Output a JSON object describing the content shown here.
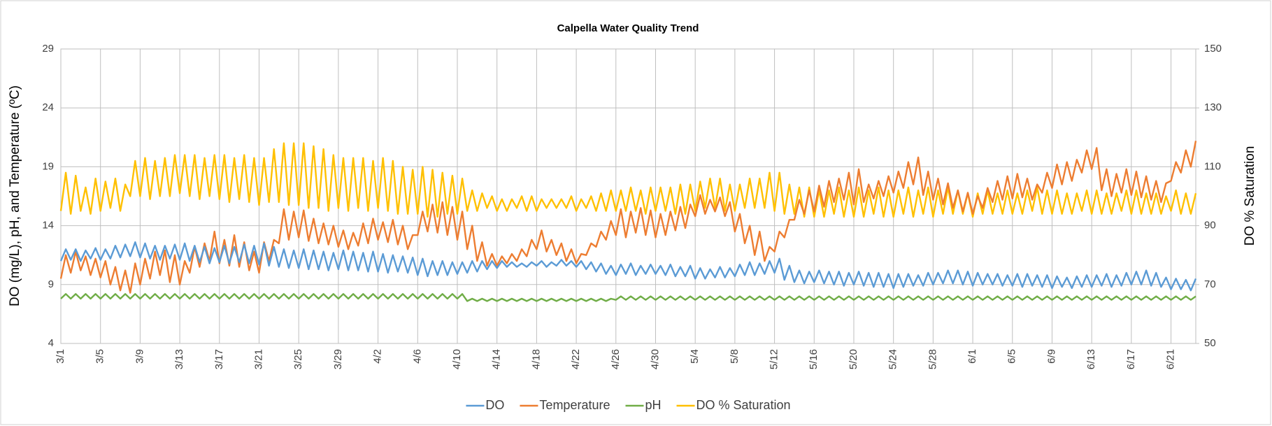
{
  "chart_data": {
    "type": "line",
    "title": "Calpella Water Quality Trend",
    "y_label": "DO (mg/L), pH, and Temperature (ºC)",
    "y2_label": "DO % Saturation",
    "xlim": [
      0,
      114.5
    ],
    "xticks": [
      {
        "value": 0,
        "label": "3/1"
      },
      {
        "value": 4,
        "label": "3/5"
      },
      {
        "value": 8,
        "label": "3/9"
      },
      {
        "value": 12,
        "label": "3/13"
      },
      {
        "value": 16,
        "label": "3/17"
      },
      {
        "value": 20,
        "label": "3/21"
      },
      {
        "value": 24,
        "label": "3/25"
      },
      {
        "value": 28,
        "label": "3/29"
      },
      {
        "value": 32,
        "label": "4/2"
      },
      {
        "value": 36,
        "label": "4/6"
      },
      {
        "value": 40,
        "label": "4/10"
      },
      {
        "value": 44,
        "label": "4/14"
      },
      {
        "value": 48,
        "label": "4/18"
      },
      {
        "value": 52,
        "label": "4/22"
      },
      {
        "value": 56,
        "label": "4/26"
      },
      {
        "value": 60,
        "label": "4/30"
      },
      {
        "value": 64,
        "label": "5/4"
      },
      {
        "value": 68,
        "label": "5/8"
      },
      {
        "value": 72,
        "label": "5/12"
      },
      {
        "value": 76,
        "label": "5/16"
      },
      {
        "value": 80,
        "label": "5/20"
      },
      {
        "value": 84,
        "label": "5/24"
      },
      {
        "value": 88,
        "label": "5/28"
      },
      {
        "value": 92,
        "label": "6/1"
      },
      {
        "value": 96,
        "label": "6/5"
      },
      {
        "value": 100,
        "label": "6/9"
      },
      {
        "value": 104,
        "label": "6/13"
      },
      {
        "value": 108,
        "label": "6/17"
      },
      {
        "value": 112,
        "label": "6/21"
      }
    ],
    "ylim": [
      4,
      29
    ],
    "yticks": [
      4,
      9,
      14,
      19,
      24,
      29
    ],
    "y2lim": [
      50,
      150
    ],
    "y2ticks": [
      50,
      70,
      90,
      110,
      130,
      150
    ],
    "grid": true,
    "legend": "bottom",
    "x": [
      0,
      0.5,
      1,
      1.5,
      2,
      2.5,
      3,
      3.5,
      4,
      4.5,
      5,
      5.5,
      6,
      6.5,
      7,
      7.5,
      8,
      8.5,
      9,
      9.5,
      10,
      10.5,
      11,
      11.5,
      12,
      12.5,
      13,
      13.5,
      14,
      14.5,
      15,
      15.5,
      16,
      16.5,
      17,
      17.5,
      18,
      18.5,
      19,
      19.5,
      20,
      20.5,
      21,
      21.5,
      22,
      22.5,
      23,
      23.5,
      24,
      24.5,
      25,
      25.5,
      26,
      26.5,
      27,
      27.5,
      28,
      28.5,
      29,
      29.5,
      30,
      30.5,
      31,
      31.5,
      32,
      32.5,
      33,
      33.5,
      34,
      34.5,
      35,
      35.5,
      36,
      36.5,
      37,
      37.5,
      38,
      38.5,
      39,
      39.5,
      40,
      40.5,
      41,
      41.5,
      42,
      42.5,
      43,
      43.5,
      44,
      44.5,
      45,
      45.5,
      46,
      46.5,
      47,
      47.5,
      48,
      48.5,
      49,
      49.5,
      50,
      50.5,
      51,
      51.5,
      52,
      52.5,
      53,
      53.5,
      54,
      54.5,
      55,
      55.5,
      56,
      56.5,
      57,
      57.5,
      58,
      58.5,
      59,
      59.5,
      60,
      60.5,
      61,
      61.5,
      62,
      62.5,
      63,
      63.5,
      64,
      64.5,
      65,
      65.5,
      66,
      66.5,
      67,
      67.5,
      68,
      68.5,
      69,
      69.5,
      70,
      70.5,
      71,
      71.5,
      72,
      72.5,
      73,
      73.5,
      74,
      74.5,
      75,
      75.5,
      76,
      76.5,
      77,
      77.5,
      78,
      78.5,
      79,
      79.5,
      80,
      80.5,
      81,
      81.5,
      82,
      82.5,
      83,
      83.5,
      84,
      84.5,
      85,
      85.5,
      86,
      86.5,
      87,
      87.5,
      88,
      88.5,
      89,
      89.5,
      90,
      90.5,
      91,
      91.5,
      92,
      92.5,
      93,
      93.5,
      94,
      94.5,
      95,
      95.5,
      96,
      96.5,
      97,
      97.5,
      98,
      98.5,
      99,
      99.5,
      100,
      100.5,
      101,
      101.5,
      102,
      102.5,
      103,
      103.5,
      104,
      104.5,
      105,
      105.5,
      106,
      106.5,
      107,
      107.5,
      108,
      108.5,
      109,
      109.5,
      110,
      110.5,
      111,
      111.5,
      112,
      112.5,
      113,
      113.5,
      114,
      114.5
    ],
    "series": [
      {
        "name": "DO",
        "color": "#5b9bd5",
        "values": [
          11,
          12,
          11.1,
          12,
          11,
          11.9,
          11.2,
          12.1,
          11.1,
          12,
          11.2,
          12.3,
          11.3,
          12.4,
          11.4,
          12.6,
          11.3,
          12.5,
          11.2,
          12.3,
          11.1,
          12.3,
          11.2,
          12.4,
          11.1,
          12.5,
          11,
          12.3,
          10.9,
          12.2,
          10.8,
          12.1,
          10.9,
          12.3,
          10.8,
          12.2,
          10.9,
          12.4,
          10.8,
          12.3,
          10.7,
          12.5,
          10.6,
          12.2,
          10.5,
          12,
          10.4,
          11.9,
          10.4,
          12,
          10.3,
          11.9,
          10.3,
          11.8,
          10.2,
          11.7,
          10.3,
          11.9,
          10.2,
          11.8,
          10.2,
          11.7,
          10.1,
          11.8,
          10.1,
          11.6,
          10,
          11.5,
          10.1,
          11.4,
          10,
          11.3,
          9.8,
          11.2,
          9.7,
          11,
          9.8,
          11,
          9.8,
          10.9,
          9.9,
          10.9,
          10,
          11,
          10.1,
          11,
          10.3,
          11,
          10.4,
          11,
          10.5,
          10.9,
          10.5,
          10.8,
          10.5,
          10.9,
          10.6,
          11,
          10.5,
          10.9,
          10.6,
          11.1,
          10.6,
          11,
          10.5,
          11,
          10.3,
          10.9,
          10.1,
          10.8,
          9.9,
          10.6,
          9.8,
          10.7,
          9.9,
          10.8,
          9.8,
          10.6,
          9.9,
          10.7,
          9.9,
          10.6,
          9.8,
          10.7,
          9.7,
          10.5,
          9.7,
          10.6,
          9.5,
          10.4,
          9.5,
          10.3,
          9.6,
          10.5,
          9.6,
          10.4,
          9.7,
          10.7,
          9.8,
          10.9,
          9.8,
          10.8,
          9.9,
          11,
          10,
          11.2,
          9.4,
          10.6,
          9.2,
          10.2,
          9.1,
          10.1,
          9.2,
          10.2,
          9.1,
          10.1,
          9,
          10.1,
          8.9,
          10,
          9,
          10.1,
          8.9,
          10,
          8.8,
          10,
          8.8,
          9.9,
          8.7,
          9.9,
          8.8,
          9.9,
          8.9,
          9.8,
          8.9,
          10,
          9,
          10,
          9.1,
          10.2,
          9.1,
          10.2,
          9,
          10.1,
          8.9,
          10,
          9,
          9.9,
          9,
          9.9,
          8.9,
          9.8,
          8.9,
          9.9,
          8.8,
          9.9,
          8.9,
          9.8,
          8.8,
          9.8,
          8.7,
          9.7,
          8.8,
          9.6,
          8.7,
          9.7,
          8.8,
          9.8,
          8.8,
          9.8,
          8.9,
          9.9,
          8.8,
          9.8,
          8.9,
          10,
          9,
          10.1,
          9,
          10.2,
          8.9,
          10,
          8.8,
          9.6,
          8.6,
          9.5,
          8.6,
          9.4,
          8.5,
          9.5
        ]
      },
      {
        "name": "Temperature",
        "color": "#ed7d31",
        "values": [
          9.5,
          11.5,
          10,
          11.8,
          10.2,
          11.4,
          9.8,
          11.2,
          9.6,
          11,
          9,
          10.5,
          8.5,
          10.2,
          8.3,
          10.8,
          9,
          11.2,
          9.5,
          11.8,
          9.8,
          11.9,
          9.2,
          11.5,
          9,
          11,
          10,
          12.2,
          10.5,
          12.5,
          11,
          13.5,
          10.8,
          12.8,
          10.6,
          13.2,
          10.5,
          12.6,
          10.2,
          11.8,
          10,
          12.6,
          11,
          12.8,
          12.5,
          15.4,
          12.8,
          15.2,
          13,
          15.3,
          12.7,
          14.6,
          12.5,
          14.2,
          12.4,
          14,
          12.2,
          13.6,
          12,
          13.4,
          12.3,
          14.2,
          12.5,
          14.6,
          12.8,
          14.3,
          12.6,
          14.5,
          12.4,
          14,
          12,
          13.2,
          13.2,
          15.2,
          13.5,
          15.8,
          13.4,
          16,
          13.2,
          15.6,
          12.8,
          15.2,
          12,
          14,
          11,
          12.6,
          10.6,
          11.6,
          10.6,
          11.4,
          10.8,
          11.6,
          11,
          12,
          11.4,
          12.8,
          12,
          13.6,
          11.8,
          12.8,
          11.5,
          12.5,
          11,
          12,
          10.8,
          11.6,
          11.5,
          12.5,
          12.2,
          13.5,
          12.8,
          14.4,
          13.2,
          15.4,
          13,
          15.2,
          13.4,
          15.5,
          13.2,
          15.3,
          13,
          15,
          13.2,
          15.2,
          13.6,
          15.6,
          13.8,
          15.8,
          14.8,
          16.6,
          15,
          16.2,
          15.2,
          16.4,
          14.8,
          16,
          13.5,
          15,
          12.5,
          14,
          11.5,
          13.5,
          11,
          12.2,
          11.8,
          13.5,
          13,
          14.5,
          14.5,
          16.2,
          15,
          17,
          15.2,
          17.4,
          15.6,
          17.8,
          16,
          18,
          16.2,
          18.5,
          15.8,
          18.8,
          16,
          17.5,
          16.3,
          17.8,
          16.5,
          18.2,
          16.8,
          18.6,
          17.2,
          19.4,
          17.5,
          19.8,
          16.6,
          18.6,
          16.2,
          18,
          15.8,
          17.6,
          15.5,
          17,
          15.2,
          16.8,
          15,
          16.5,
          15.5,
          17.2,
          16,
          17.8,
          16.2,
          18.2,
          16.3,
          18.4,
          16.4,
          18,
          16.2,
          17.5,
          16.8,
          18.5,
          17.2,
          19.2,
          17.5,
          19.4,
          17.8,
          19.6,
          18.5,
          20.4,
          18.8,
          20.6,
          17,
          18.8,
          16.5,
          18.4,
          16.8,
          18.8,
          16.6,
          18.6,
          16.4,
          18.2,
          16.2,
          17.8,
          16,
          17.6,
          17.8,
          19.4,
          18.5,
          20.4,
          19,
          21.2
        ]
      },
      {
        "name": "pH",
        "color": "#70ad47",
        "values": [
          7.8,
          8.2,
          7.8,
          8.2,
          7.8,
          8.2,
          7.8,
          8.2,
          7.8,
          8.2,
          7.8,
          8.2,
          7.8,
          8.2,
          7.8,
          8.2,
          7.8,
          8.2,
          7.8,
          8.2,
          7.8,
          8.2,
          7.8,
          8.2,
          7.8,
          8.2,
          7.8,
          8.2,
          7.8,
          8.2,
          7.8,
          8.2,
          7.8,
          8.2,
          7.8,
          8.2,
          7.8,
          8.2,
          7.8,
          8.2,
          7.8,
          8.2,
          7.8,
          8.2,
          7.8,
          8.2,
          7.8,
          8.2,
          7.8,
          8.2,
          7.8,
          8.2,
          7.8,
          8.2,
          7.8,
          8.2,
          7.8,
          8.2,
          7.8,
          8.2,
          7.8,
          8.2,
          7.8,
          8.2,
          7.8,
          8.2,
          7.8,
          8.2,
          7.8,
          8.2,
          7.8,
          8.2,
          7.8,
          8.2,
          7.8,
          8.2,
          7.8,
          8.2,
          7.8,
          8.2,
          7.8,
          8.2,
          7.6,
          7.8,
          7.6,
          7.8,
          7.6,
          7.8,
          7.6,
          7.8,
          7.6,
          7.8,
          7.6,
          7.8,
          7.6,
          7.8,
          7.6,
          7.8,
          7.6,
          7.8,
          7.6,
          7.8,
          7.6,
          7.8,
          7.6,
          7.8,
          7.6,
          7.8,
          7.6,
          7.8,
          7.6,
          7.8,
          7.7,
          8,
          7.7,
          8,
          7.7,
          8,
          7.7,
          8,
          7.7,
          8,
          7.7,
          8,
          7.7,
          8,
          7.7,
          8,
          7.7,
          8,
          7.7,
          8,
          7.7,
          8,
          7.7,
          8,
          7.7,
          8,
          7.7,
          8,
          7.7,
          8,
          7.7,
          8,
          7.7,
          8,
          7.7,
          8,
          7.7,
          8,
          7.7,
          8,
          7.7,
          8,
          7.7,
          8,
          7.7,
          8,
          7.7,
          8,
          7.7,
          8,
          7.7,
          8,
          7.7,
          8,
          7.7,
          8,
          7.7,
          8,
          7.7,
          8,
          7.7,
          8,
          7.7,
          8,
          7.7,
          8,
          7.7,
          8,
          7.7,
          8,
          7.7,
          8,
          7.7,
          8,
          7.7,
          8,
          7.7,
          8,
          7.7,
          8,
          7.7,
          8,
          7.7,
          8,
          7.7,
          8,
          7.7,
          8,
          7.7,
          8,
          7.7,
          8,
          7.7,
          8,
          7.7,
          8,
          7.7,
          8,
          7.7,
          8,
          7.7,
          8,
          7.7,
          8,
          7.7,
          8,
          7.7,
          8,
          7.7,
          8,
          7.7,
          8,
          7.7,
          8,
          7.7,
          8,
          7.7,
          8
        ]
      },
      {
        "name": "DO % Saturation",
        "color": "#ffc000",
        "axis": "y2",
        "values": [
          95,
          108,
          94,
          107,
          95,
          103,
          94,
          106,
          95,
          105,
          96,
          106,
          95,
          104,
          100,
          112,
          100,
          113,
          99,
          112,
          100,
          113,
          100,
          114,
          101,
          114,
          100,
          114,
          99,
          113,
          100,
          114,
          99,
          114,
          98,
          113,
          99,
          114,
          98,
          113,
          97,
          113,
          98,
          116,
          98,
          118,
          97,
          118,
          97,
          118,
          96,
          117,
          96,
          116,
          95,
          114,
          96,
          113,
          95,
          113,
          96,
          113,
          95,
          112,
          96,
          113,
          95,
          112,
          94,
          110,
          94,
          109,
          94,
          110,
          93,
          109,
          93,
          108,
          94,
          107,
          94,
          106,
          95,
          102,
          95,
          101,
          96,
          100,
          95,
          99,
          95,
          99,
          96,
          100,
          95,
          100,
          95,
          99,
          96,
          99,
          96,
          99,
          96,
          100,
          95,
          99,
          96,
          100,
          95,
          101,
          95,
          102,
          95,
          102,
          95,
          103,
          95,
          102,
          94,
          103,
          95,
          103,
          95,
          103,
          94,
          104,
          94,
          104,
          95,
          105,
          96,
          106,
          96,
          106,
          95,
          104,
          95,
          104,
          96,
          106,
          96,
          106,
          96,
          108,
          95,
          108,
          94,
          104,
          94,
          103,
          93,
          103,
          93,
          102,
          93,
          102,
          94,
          103,
          93,
          102,
          93,
          103,
          93,
          102,
          94,
          103,
          93,
          102,
          93,
          102,
          94,
          103,
          93,
          102,
          94,
          103,
          93,
          102,
          94,
          103,
          94,
          102,
          94,
          101,
          93,
          101,
          94,
          102,
          94,
          101,
          94,
          102,
          94,
          101,
          94,
          102,
          95,
          103,
          94,
          102,
          94,
          102,
          94,
          101,
          94,
          101,
          95,
          102,
          94,
          102,
          94,
          101,
          94,
          101,
          95,
          102,
          94,
          102,
          94,
          101,
          94,
          101,
          94,
          100,
          95,
          102,
          94,
          101,
          94,
          101
        ]
      }
    ]
  }
}
